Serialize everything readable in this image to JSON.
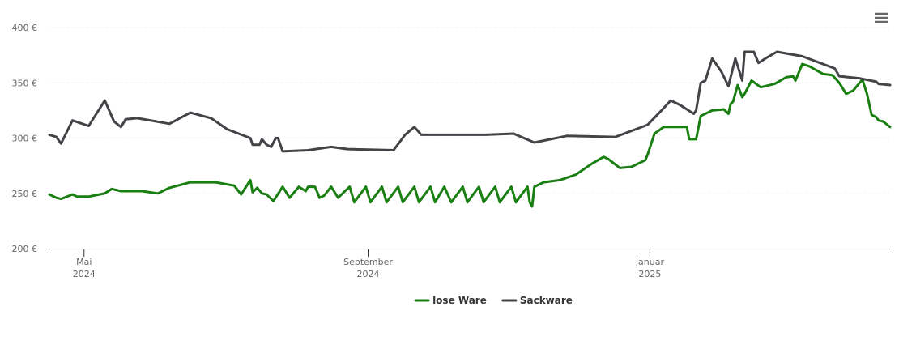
{
  "chart_data": {
    "type": "line",
    "xlim": [
      0,
      364
    ],
    "xticks": [
      {
        "value": 15,
        "label": [
          "Mai",
          "2024"
        ]
      },
      {
        "value": 138,
        "label": [
          "September",
          "2024"
        ]
      },
      {
        "value": 260,
        "label": [
          "Januar",
          "2025"
        ]
      }
    ],
    "ylim": [
      200,
      400
    ],
    "yticks": [
      {
        "value": 200,
        "label": "200 €"
      },
      {
        "value": 250,
        "label": "250 €"
      },
      {
        "value": 300,
        "label": "300 €"
      },
      {
        "value": 350,
        "label": "350 €"
      },
      {
        "value": 400,
        "label": "400 €"
      }
    ],
    "grid": true,
    "legend": "bottom",
    "series": [
      {
        "name": "lose Ware",
        "color": "#1a7f12",
        "x": [
          0,
          3,
          5,
          10,
          12,
          17,
          24,
          27,
          31,
          40,
          47,
          52,
          61,
          72,
          80,
          83,
          87,
          88,
          90,
          92,
          94,
          97,
          101,
          104,
          108,
          111,
          112,
          115,
          117,
          119,
          122,
          125,
          130,
          132,
          137,
          139,
          144,
          146,
          151,
          153,
          158,
          160,
          165,
          167,
          171,
          174,
          179,
          181,
          186,
          188,
          193,
          195,
          200,
          202,
          207,
          208,
          209,
          210,
          214,
          221,
          228,
          235,
          240,
          242,
          247,
          252,
          258,
          259,
          262,
          266,
          276,
          277,
          280,
          282,
          287,
          292,
          294,
          295,
          296,
          298,
          300,
          301,
          304,
          308,
          314,
          319,
          322,
          323,
          326,
          329,
          335,
          339,
          342,
          345,
          348,
          352,
          354,
          356,
          358,
          359,
          361,
          364
        ],
        "values": [
          249,
          246,
          245,
          249,
          247,
          247,
          250,
          254,
          252,
          252,
          250,
          255,
          260,
          260,
          257,
          249,
          262,
          251,
          255,
          250,
          249,
          243,
          256,
          246,
          256,
          252,
          256,
          256,
          246,
          248,
          256,
          246,
          256,
          242,
          256,
          242,
          256,
          242,
          256,
          242,
          256,
          242,
          256,
          242,
          256,
          242,
          256,
          242,
          256,
          242,
          256,
          242,
          256,
          242,
          256,
          242,
          238,
          256,
          260,
          262,
          267,
          277,
          283,
          281,
          273,
          274,
          280,
          285,
          304,
          310,
          310,
          299,
          299,
          320,
          325,
          326,
          322,
          331,
          333,
          348,
          337,
          340,
          352,
          346,
          349,
          355,
          356,
          352,
          367,
          365,
          358,
          357,
          350,
          340,
          343,
          353,
          340,
          321,
          319,
          316,
          315,
          310
        ]
      },
      {
        "name": "Sackware",
        "color": "#434348",
        "x": [
          0,
          3,
          5,
          10,
          17,
          24,
          28,
          31,
          33,
          38,
          52,
          61,
          70,
          77,
          87,
          88,
          91,
          92,
          94,
          96,
          98,
          99,
          101,
          112,
          122,
          129,
          149,
          154,
          158,
          161,
          189,
          201,
          210,
          224,
          245,
          259,
          265,
          269,
          273,
          279,
          280,
          282,
          284,
          287,
          291,
          294,
          297,
          300,
          301,
          305,
          307,
          310,
          315,
          326,
          340,
          342,
          351,
          358,
          359,
          364
        ],
        "values": [
          303,
          301,
          295,
          316,
          311,
          334,
          315,
          310,
          317,
          318,
          313,
          323,
          318,
          308,
          300,
          294,
          294,
          299,
          294,
          292,
          300,
          300,
          288,
          289,
          292,
          290,
          289,
          303,
          310,
          303,
          303,
          304,
          296,
          302,
          301,
          312,
          325,
          334,
          330,
          322,
          325,
          350,
          352,
          372,
          360,
          347,
          372,
          352,
          378,
          378,
          368,
          372,
          378,
          374,
          363,
          356,
          354,
          351,
          349,
          348
        ]
      }
    ]
  }
}
